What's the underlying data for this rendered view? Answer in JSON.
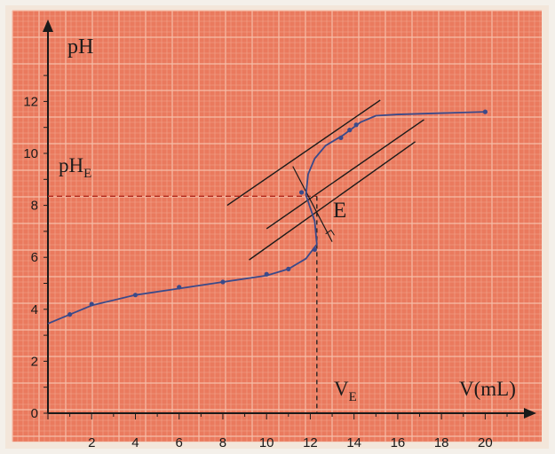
{
  "colors": {
    "plot_background": "#ea7a5e",
    "grid_minor": "#f2a58d",
    "grid_major": "#f6bea9",
    "curve": "#3a4a8a",
    "ink": "#1a1a1a",
    "frame": "#f3e6da"
  },
  "chart_data": {
    "type": "line",
    "title": "",
    "xlabel": "V(mL)",
    "ylabel": "pH",
    "xlim": [
      0,
      22
    ],
    "ylim": [
      0,
      13.5
    ],
    "x_ticks": [
      2,
      4,
      6,
      8,
      10,
      12,
      14,
      16,
      18,
      20
    ],
    "y_ticks": [
      0,
      2,
      4,
      6,
      8,
      10,
      12
    ],
    "grid": true,
    "series": [
      {
        "points": [
          [
            1,
            3.8
          ],
          [
            2,
            4.2
          ],
          [
            4,
            4.55
          ],
          [
            6,
            4.85
          ],
          [
            8,
            5.05
          ],
          [
            10,
            5.35
          ],
          [
            11,
            5.55
          ],
          [
            12.2,
            6.3
          ],
          [
            11.6,
            8.5
          ],
          [
            13.4,
            10.6
          ],
          [
            13.8,
            10.9
          ],
          [
            14.1,
            11.1
          ],
          [
            20,
            11.6
          ]
        ],
        "curve": [
          [
            0,
            3.45
          ],
          [
            1,
            3.8
          ],
          [
            2,
            4.15
          ],
          [
            4,
            4.55
          ],
          [
            6,
            4.8
          ],
          [
            8,
            5.05
          ],
          [
            10,
            5.3
          ],
          [
            11,
            5.55
          ],
          [
            11.8,
            5.95
          ],
          [
            12.3,
            6.5
          ],
          [
            12.2,
            7.4
          ],
          [
            11.8,
            8.4
          ],
          [
            11.9,
            9.2
          ],
          [
            12.2,
            9.8
          ],
          [
            12.7,
            10.3
          ],
          [
            13.5,
            10.7
          ],
          [
            14.3,
            11.2
          ],
          [
            15,
            11.45
          ],
          [
            16,
            11.5
          ],
          [
            18,
            11.55
          ],
          [
            20,
            11.6
          ]
        ]
      }
    ],
    "tangents": [
      [
        [
          9.2,
          5.9
        ],
        [
          16.8,
          10.45
        ]
      ],
      [
        [
          10,
          7.1
        ],
        [
          17.2,
          11.3
        ]
      ],
      [
        [
          8.2,
          8.0
        ],
        [
          15.2,
          12.05
        ]
      ]
    ],
    "equivalence": {
      "point": [
        12.3,
        8.35
      ],
      "label": "E",
      "ph_label": "pH",
      "ph_subscript": "E",
      "v_label": "V",
      "v_subscript": "E"
    }
  }
}
